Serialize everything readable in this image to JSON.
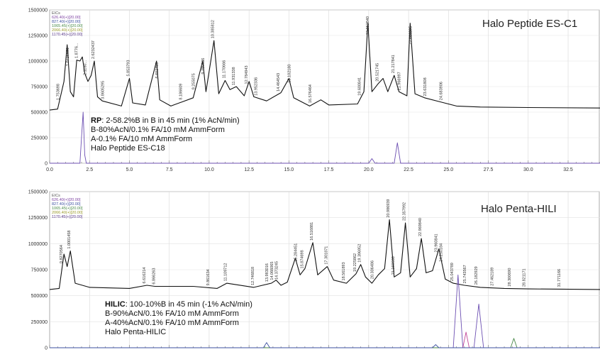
{
  "chart_data": [
    {
      "type": "line",
      "title": "Halo Peptide ES-C1",
      "xlim": [
        0,
        34.5
      ],
      "ylim": [
        0,
        1500000
      ],
      "x_ticks": [
        "0.0",
        "2.5",
        "5.0",
        "7.5",
        "10.0",
        "12.5",
        "15.0",
        "17.5",
        "20.0",
        "22.5",
        "25.0",
        "27.5",
        "30.0",
        "32.5"
      ],
      "y_ticks": [
        "1500000",
        "1250000",
        "1000000",
        "750000",
        "500000",
        "250000",
        "0"
      ],
      "legend": [
        {
          "text": "EICs",
          "color": "#555555"
        },
        {
          "text": "626.40(+)[20.00]",
          "color": "#7b3fa0"
        },
        {
          "text": "827.40(+)[20.00]",
          "color": "#3b4fa0"
        },
        {
          "text": "1065.45(+)[20.00]",
          "color": "#4a8a4a"
        },
        {
          "text": "2066.40(+)[20.00]",
          "color": "#9a9a2a"
        },
        {
          "text": "1170.45(+)[20.00]",
          "color": "#5a3a8a"
        }
      ],
      "series": [
        {
          "color": "#111111",
          "points": [
            [
              0,
              520000
            ],
            [
              0.5,
              530000
            ],
            [
              0.9,
              800000
            ],
            [
              1.1,
              1160000
            ],
            [
              1.3,
              700000
            ],
            [
              1.5,
              650000
            ],
            [
              1.7,
              1010000
            ],
            [
              1.9,
              1000000
            ],
            [
              2.05,
              1040000
            ],
            [
              2.2,
              880000
            ],
            [
              2.4,
              800000
            ],
            [
              2.6,
              860000
            ],
            [
              2.8,
              1000000
            ],
            [
              3.0,
              650000
            ],
            [
              3.3,
              610000
            ],
            [
              4.5,
              560000
            ],
            [
              5.0,
              830000
            ],
            [
              5.2,
              590000
            ],
            [
              6.0,
              570000
            ],
            [
              6.7,
              1000000
            ],
            [
              6.9,
              620000
            ],
            [
              7.6,
              560000
            ],
            [
              8.3,
              600000
            ],
            [
              9.0,
              640000
            ],
            [
              9.6,
              1000000
            ],
            [
              9.8,
              700000
            ],
            [
              10.3,
              1200000
            ],
            [
              10.6,
              680000
            ],
            [
              11.0,
              810000
            ],
            [
              11.3,
              720000
            ],
            [
              11.7,
              750000
            ],
            [
              12.2,
              660000
            ],
            [
              12.5,
              800000
            ],
            [
              12.8,
              650000
            ],
            [
              13.6,
              610000
            ],
            [
              14.5,
              690000
            ],
            [
              15.0,
              830000
            ],
            [
              15.3,
              640000
            ],
            [
              16.3,
              560000
            ],
            [
              17.0,
              620000
            ],
            [
              17.5,
              570000
            ],
            [
              19.3,
              580000
            ],
            [
              19.7,
              700000
            ],
            [
              19.95,
              1370000
            ],
            [
              20.2,
              700000
            ],
            [
              20.6,
              780000
            ],
            [
              20.9,
              830000
            ],
            [
              21.2,
              700000
            ],
            [
              21.6,
              860000
            ],
            [
              21.9,
              700000
            ],
            [
              22.4,
              660000
            ],
            [
              22.6,
              1370000
            ],
            [
              22.9,
              680000
            ],
            [
              23.5,
              640000
            ],
            [
              24.5,
              600000
            ],
            [
              25.5,
              560000
            ],
            [
              27.0,
              550000
            ],
            [
              30.0,
              545000
            ],
            [
              34.5,
              540000
            ]
          ]
        },
        {
          "color": "#6c4fb2",
          "points": [
            [
              0,
              0
            ],
            [
              1.9,
              0
            ],
            [
              2.0,
              260000
            ],
            [
              2.1,
              500000
            ],
            [
              2.2,
              80000
            ],
            [
              2.3,
              0
            ],
            [
              20.0,
              0
            ],
            [
              20.2,
              45000
            ],
            [
              20.4,
              0
            ],
            [
              21.6,
              0
            ],
            [
              21.8,
              200000
            ],
            [
              22.0,
              0
            ],
            [
              34.5,
              0
            ]
          ]
        }
      ],
      "peak_labels": [
        {
          "x": 0.6,
          "text": "1.753698"
        },
        {
          "x": 1.2,
          "text": "1.0716661"
        },
        {
          "x": 1.75,
          "text": "1.8776..."
        },
        {
          "x": 2.3,
          "text": "2.1180..."
        },
        {
          "x": 2.8,
          "text": "2.6232437"
        },
        {
          "x": 3.4,
          "text": "3.8605295"
        },
        {
          "x": 5.0,
          "text": "5.853793"
        },
        {
          "x": 6.8,
          "text": "6.602489"
        },
        {
          "x": 8.3,
          "text": "8.186609"
        },
        {
          "x": 9.1,
          "text": "9.255075"
        },
        {
          "x": 9.7,
          "text": "9.780836"
        },
        {
          "x": 10.3,
          "text": "10.385812"
        },
        {
          "x": 11.0,
          "text": "11.170666"
        },
        {
          "x": 11.6,
          "text": "11.931338"
        },
        {
          "x": 12.4,
          "text": "12.784943"
        },
        {
          "x": 13.0,
          "text": "13.952336"
        },
        {
          "x": 14.4,
          "text": "14.464543"
        },
        {
          "x": 15.1,
          "text": "15.102180"
        },
        {
          "x": 16.4,
          "text": "16.576464"
        },
        {
          "x": 19.5,
          "text": "19.600841"
        },
        {
          "x": 20.0,
          "text": "19.952840"
        },
        {
          "x": 20.6,
          "text": "20.521745"
        },
        {
          "x": 21.6,
          "text": "21.217841"
        },
        {
          "x": 22.0,
          "text": "21.966997"
        },
        {
          "x": 22.7,
          "text": "22.669295"
        },
        {
          "x": 23.6,
          "text": "23.631808"
        },
        {
          "x": 24.6,
          "text": "24.683906"
        }
      ],
      "method_text": {
        "line1_bold": "RP",
        "line1_rest": ": 2-58.2%B in B in 45 min (1% AcN/min)",
        "line2": "B-80%AcN/0.1% FA/10 mM AmmForm",
        "line3": "A-0.1% FA/10 mM AmmForm",
        "line4": "Halo Peptide ES-C18"
      }
    },
    {
      "type": "line",
      "title": "Halo Penta-HILI",
      "xlim": [
        0,
        34.5
      ],
      "ylim": [
        0,
        1500000
      ],
      "y_ticks": [
        "1500000",
        "1250000",
        "1000000",
        "750000",
        "500000",
        "250000",
        "0"
      ],
      "legend": [
        {
          "text": "EICs",
          "color": "#555555"
        },
        {
          "text": "626.40(+)[20.00]",
          "color": "#7b3fa0"
        },
        {
          "text": "827.40(+)[20.00]",
          "color": "#3b4fa0"
        },
        {
          "text": "1065.45(+)[20.00]",
          "color": "#4a8a4a"
        },
        {
          "text": "2066.40(+)[20.00]",
          "color": "#9a9a2a"
        },
        {
          "text": "1170.45(+)[20.00]",
          "color": "#5a3a8a"
        }
      ],
      "series": [
        {
          "color": "#111111",
          "points": [
            [
              0,
              560000
            ],
            [
              0.6,
              570000
            ],
            [
              0.9,
              900000
            ],
            [
              1.1,
              780000
            ],
            [
              1.3,
              930000
            ],
            [
              1.6,
              620000
            ],
            [
              2.5,
              580000
            ],
            [
              5.0,
              570000
            ],
            [
              6.1,
              600000
            ],
            [
              6.6,
              590000
            ],
            [
              9.0,
              590000
            ],
            [
              10.5,
              570000
            ],
            [
              11.1,
              620000
            ],
            [
              12.8,
              580000
            ],
            [
              13.9,
              620000
            ],
            [
              14.2,
              650000
            ],
            [
              14.5,
              600000
            ],
            [
              14.9,
              630000
            ],
            [
              15.4,
              860000
            ],
            [
              15.7,
              700000
            ],
            [
              16.0,
              760000
            ],
            [
              16.5,
              1010000
            ],
            [
              16.8,
              700000
            ],
            [
              17.4,
              780000
            ],
            [
              17.8,
              650000
            ],
            [
              18.6,
              620000
            ],
            [
              19.2,
              710000
            ],
            [
              19.5,
              800000
            ],
            [
              19.8,
              680000
            ],
            [
              20.2,
              620000
            ],
            [
              20.6,
              700000
            ],
            [
              21.0,
              760000
            ],
            [
              21.3,
              1230000
            ],
            [
              21.6,
              680000
            ],
            [
              22.0,
              720000
            ],
            [
              22.3,
              1200000
            ],
            [
              22.6,
              680000
            ],
            [
              23.0,
              760000
            ],
            [
              23.3,
              1050000
            ],
            [
              23.6,
              720000
            ],
            [
              24.0,
              740000
            ],
            [
              24.4,
              950000
            ],
            [
              24.8,
              660000
            ],
            [
              25.3,
              620000
            ],
            [
              26.0,
              600000
            ],
            [
              27.0,
              580000
            ],
            [
              28.5,
              570000
            ],
            [
              30.0,
              565000
            ],
            [
              34.5,
              560000
            ]
          ]
        },
        {
          "color": "#6c4fb2",
          "points": [
            [
              0,
              0
            ],
            [
              25.3,
              0
            ],
            [
              25.6,
              700000
            ],
            [
              25.9,
              0
            ],
            [
              26.6,
              0
            ],
            [
              26.9,
              420000
            ],
            [
              27.2,
              0
            ],
            [
              34.5,
              0
            ]
          ]
        },
        {
          "color": "#c44a9a",
          "points": [
            [
              0,
              0
            ],
            [
              25.9,
              0
            ],
            [
              26.1,
              150000
            ],
            [
              26.3,
              0
            ],
            [
              34.5,
              0
            ]
          ]
        },
        {
          "color": "#4a8a4a",
          "points": [
            [
              0,
              0
            ],
            [
              28.9,
              0
            ],
            [
              29.1,
              90000
            ],
            [
              29.3,
              0
            ],
            [
              34.5,
              0
            ]
          ]
        },
        {
          "color": "#3b4fa0",
          "points": [
            [
              0,
              0
            ],
            [
              13.4,
              0
            ],
            [
              13.6,
              50000
            ],
            [
              13.8,
              0
            ],
            [
              24.0,
              0
            ],
            [
              24.2,
              30000
            ],
            [
              24.4,
              0
            ],
            [
              34.5,
              0
            ]
          ]
        }
      ],
      "peak_labels": [
        {
          "x": 0.8,
          "text": "0.8270564"
        },
        {
          "x": 1.3,
          "text": "1.0001458"
        },
        {
          "x": 6.0,
          "text": "6.616214"
        },
        {
          "x": 6.6,
          "text": "6.866263"
        },
        {
          "x": 10.0,
          "text": "9.861634"
        },
        {
          "x": 11.1,
          "text": "11.109712"
        },
        {
          "x": 12.8,
          "text": "12.746818"
        },
        {
          "x": 13.7,
          "text": "13.983016"
        },
        {
          "x": 14.0,
          "text": "14.066065"
        },
        {
          "x": 14.3,
          "text": "14.373245"
        },
        {
          "x": 15.5,
          "text": "15.284451"
        },
        {
          "x": 15.9,
          "text": "15.874698"
        },
        {
          "x": 16.5,
          "text": "16.516881"
        },
        {
          "x": 17.4,
          "text": "17.301871"
        },
        {
          "x": 18.5,
          "text": "18.561893"
        },
        {
          "x": 19.2,
          "text": "19.225862"
        },
        {
          "x": 19.5,
          "text": "19.396952"
        },
        {
          "x": 20.3,
          "text": "20.306486"
        },
        {
          "x": 21.3,
          "text": "20.986939"
        },
        {
          "x": 21.6,
          "text": "21.160688"
        },
        {
          "x": 22.3,
          "text": "22.357992"
        },
        {
          "x": 23.3,
          "text": "22.969840"
        },
        {
          "x": 24.3,
          "text": "23.960841"
        },
        {
          "x": 24.6,
          "text": "24.250184"
        },
        {
          "x": 25.3,
          "text": "25.043789"
        },
        {
          "x": 26.1,
          "text": "25.743567"
        },
        {
          "x": 26.8,
          "text": "26.182929"
        },
        {
          "x": 27.8,
          "text": "27.462189"
        },
        {
          "x": 28.9,
          "text": "28.300690"
        },
        {
          "x": 29.8,
          "text": "28.821171"
        },
        {
          "x": 32.0,
          "text": "31.771166"
        }
      ],
      "method_text": {
        "line1_bold": "HILIC",
        "line1_rest": ": 100-10%B in 45 min (-1% AcN/min)",
        "line2": "B-90%AcN/0.1% FA/10 mM AmmForm",
        "line3": "A-40%AcN/0.1% FA/10 mM AmmForm",
        "line4": "Halo Penta-HILIC"
      }
    }
  ]
}
